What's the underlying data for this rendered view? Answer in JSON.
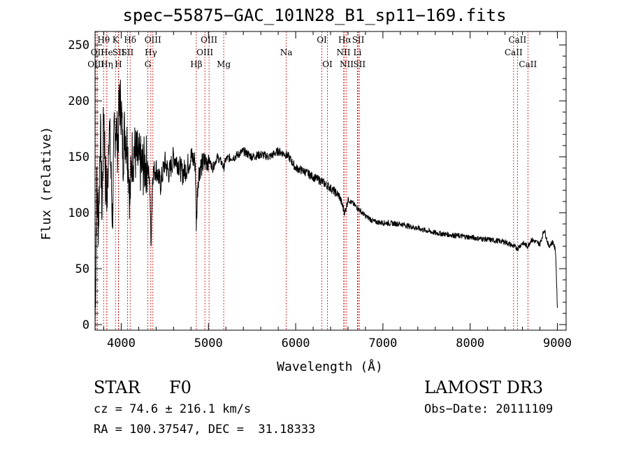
{
  "chart_data": {
    "type": "line",
    "title": "spec−55875−GAC_101N28_B1_sp11−169.fits",
    "xlabel": "Wavelength (Å)",
    "ylabel": "Flux (relative)",
    "xlim": [
      3700,
      9100
    ],
    "ylim": [
      -5,
      262
    ],
    "xticks": [
      4000,
      5000,
      6000,
      7000,
      8000,
      9000
    ],
    "yticks": [
      0,
      50,
      100,
      150,
      200,
      250
    ],
    "series": [
      {
        "name": "spectrum",
        "x": [
          3700,
          3720,
          3740,
          3760,
          3780,
          3800,
          3820,
          3840,
          3860,
          3880,
          3900,
          3920,
          3940,
          3960,
          3980,
          4000,
          4020,
          4040,
          4060,
          4080,
          4100,
          4120,
          4150,
          4200,
          4250,
          4300,
          4330,
          4340,
          4360,
          4400,
          4450,
          4500,
          4550,
          4600,
          4650,
          4700,
          4750,
          4800,
          4850,
          4861,
          4880,
          4900,
          4950,
          5000,
          5050,
          5100,
          5150,
          5175,
          5200,
          5300,
          5400,
          5500,
          5600,
          5700,
          5800,
          5890,
          5920,
          6000,
          6100,
          6200,
          6300,
          6400,
          6500,
          6563,
          6600,
          6700,
          6800,
          6900,
          7000,
          7200,
          7400,
          7600,
          7800,
          8000,
          8200,
          8400,
          8498,
          8542,
          8600,
          8662,
          8700,
          8800,
          8850,
          8900,
          8950,
          8980,
          9000
        ],
        "values": [
          3,
          120,
          90,
          175,
          100,
          195,
          130,
          110,
          185,
          140,
          95,
          170,
          180,
          160,
          200,
          195,
          150,
          175,
          165,
          150,
          110,
          150,
          155,
          145,
          140,
          145,
          120,
          70,
          135,
          140,
          125,
          145,
          135,
          150,
          145,
          135,
          140,
          150,
          145,
          90,
          130,
          140,
          145,
          148,
          140,
          150,
          145,
          140,
          148,
          150,
          155,
          150,
          152,
          150,
          155,
          152,
          150,
          140,
          137,
          132,
          128,
          122,
          115,
          100,
          112,
          105,
          97,
          92,
          91,
          90,
          86,
          82,
          80,
          78,
          76,
          74,
          70,
          68,
          73,
          70,
          76,
          72,
          85,
          70,
          74,
          65,
          15
        ]
      }
    ],
    "lines": [
      {
        "label": "Hθ",
        "wave": 3798,
        "row": 0
      },
      {
        "label": "OII",
        "wave": 3727,
        "row": 1
      },
      {
        "label": "OIII",
        "wave": 3710,
        "row": 2
      },
      {
        "label": "He",
        "wave": 3835,
        "row": 1
      },
      {
        "label": "Hη",
        "wave": 3835,
        "row": 2
      },
      {
        "label": "K",
        "wave": 3934,
        "row": 0
      },
      {
        "label": "SII",
        "wave": 3970,
        "row": 1
      },
      {
        "label": "H",
        "wave": 3968,
        "row": 2
      },
      {
        "label": "Hδ",
        "wave": 4102,
        "row": 0
      },
      {
        "label": "SII",
        "wave": 4072,
        "row": 1
      },
      {
        "label": "OIII",
        "wave": 4363,
        "row": 0
      },
      {
        "label": "Hγ",
        "wave": 4340,
        "row": 1
      },
      {
        "label": "G",
        "wave": 4305,
        "row": 2
      },
      {
        "label": "Hβ",
        "wave": 4861,
        "row": 2
      },
      {
        "label": "OIII",
        "wave": 5007,
        "row": 0
      },
      {
        "label": "OIII",
        "wave": 4959,
        "row": 1
      },
      {
        "label": "Mg",
        "wave": 5175,
        "row": 2
      },
      {
        "label": "Na",
        "wave": 5892,
        "row": 1
      },
      {
        "label": "OI",
        "wave": 6300,
        "row": 0
      },
      {
        "label": "OI",
        "wave": 6364,
        "row": 2
      },
      {
        "label": "Hα",
        "wave": 6563,
        "row": 0
      },
      {
        "label": "NII",
        "wave": 6548,
        "row": 1
      },
      {
        "label": "NII",
        "wave": 6584,
        "row": 2
      },
      {
        "label": "SII",
        "wave": 6717,
        "row": 0
      },
      {
        "label": "Li",
        "wave": 6708,
        "row": 1
      },
      {
        "label": "SII",
        "wave": 6731,
        "row": 2
      },
      {
        "label": "CaII",
        "wave": 8542,
        "row": 0
      },
      {
        "label": "CaII",
        "wave": 8498,
        "row": 1
      },
      {
        "label": "CaII",
        "wave": 8662,
        "row": 2
      }
    ]
  },
  "info": {
    "object_class": "STAR",
    "subclass": "F0",
    "survey": "LAMOST DR3",
    "redshift": "cz = 74.6 ± 216.1 km/s",
    "obs_date": "Obs−Date: 20111109",
    "coords": "RA = 100.37547, DEC =  31.18333"
  },
  "colors": {
    "spectrum": "#000000",
    "line_markers": "#cc0000"
  }
}
